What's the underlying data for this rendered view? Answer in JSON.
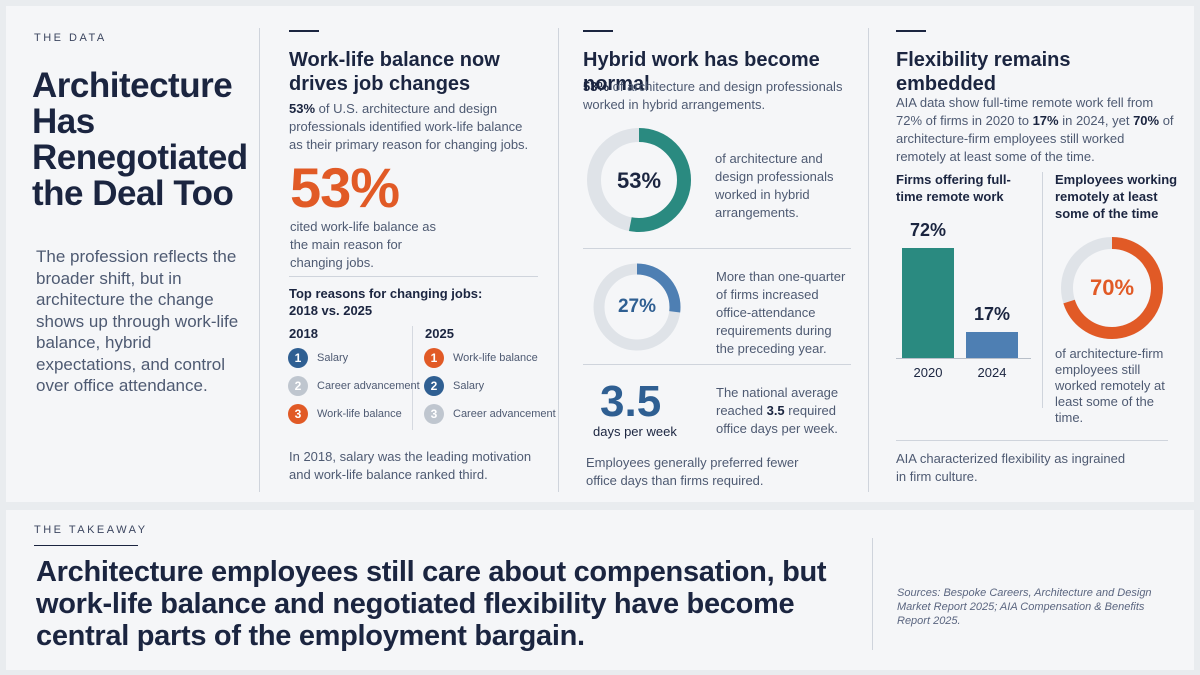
{
  "intro": {
    "eyebrow": "THE DATA",
    "title": "Architecture Has Renegotiated the Deal Too",
    "body": "The profession reflects the broader shift, but in architecture the change shows up through work-life balance, hybrid expectations, and control over office attendance."
  },
  "col1": {
    "title": "Work-life balance now drives job changes",
    "intro_bold": "53%",
    "intro_rest": " of U.S. architecture and design professionals identified work-life balance as their primary reason for changing jobs.",
    "big_stat": "53%",
    "big_caption": "cited work-life balance as the main reason for changing jobs.",
    "ranks_title": "Top reasons for changing jobs: 2018 vs. 2025",
    "year_a": "2018",
    "year_b": "2025",
    "list_2018": [
      {
        "rank": "1",
        "label": "Salary",
        "color": "#2f5f92"
      },
      {
        "rank": "2",
        "label": "Career advancement",
        "color": "#bfc6cf"
      },
      {
        "rank": "3",
        "label": "Work-life balance",
        "color": "#e15a26"
      }
    ],
    "list_2025": [
      {
        "rank": "1",
        "label": "Work-life balance",
        "color": "#e15a26"
      },
      {
        "rank": "2",
        "label": "Salary",
        "color": "#2f5f92"
      },
      {
        "rank": "3",
        "label": "Career advancement",
        "color": "#bfc6cf"
      }
    ],
    "footnote": "In 2018, salary was the leading motivation and work-life balance ranked third."
  },
  "col2": {
    "title": "Hybrid work has become normal",
    "intro_bold": "53%",
    "intro_rest": " of architecture and design professionals worked in hybrid arrangements.",
    "donut1": {
      "value": 53,
      "label": "53%",
      "color": "#2a8a80",
      "caption": "of architecture and design professionals worked in hybrid arrangements."
    },
    "donut2": {
      "value": 27,
      "label": "27%",
      "color": "#4e7fb3",
      "caption": "More than one-quarter of firms increased office-attendance requirements during the preceding year."
    },
    "stat3": {
      "value": "3.5",
      "unit": "days per week",
      "caption_pre": "The national average reached ",
      "caption_bold": "3.5",
      "caption_post": " required office days per week."
    },
    "footnote": "Employees generally preferred fewer office days than firms required."
  },
  "col3": {
    "title": "Flexibility remains embedded",
    "intro_a": "AIA data show full-time remote work fell from 72% of firms in 2020 to ",
    "intro_b": "17%",
    "intro_c": " in 2024, yet ",
    "intro_d": "70%",
    "intro_e": " of architecture-firm employees still worked remotely at least some of the time.",
    "bars_title": "Firms offering full-time remote work",
    "bars": [
      {
        "x": "2020",
        "value": 72,
        "label": "72%",
        "color": "#2a8a80"
      },
      {
        "x": "2024",
        "value": 17,
        "label": "17%",
        "color": "#4e7fb3"
      }
    ],
    "donut_title": "Employees working remotely at least some of the time",
    "donut": {
      "value": 70,
      "label": "70%",
      "color": "#e15a26"
    },
    "donut_caption": "of architecture-firm employees still worked remotely at least some of the time.",
    "footnote": "AIA characterized flexibility as ingrained in firm culture."
  },
  "takeaway": {
    "eyebrow": "THE TAKEAWAY",
    "text": "Architecture employees still care about compensation, but work-life balance and negotiated flexibility have become central parts of the employment bargain.",
    "sources": "Sources: Bespoke Careers, Architecture and Design Market Report 2025; AIA Compensation & Benefits Report 2025."
  }
}
